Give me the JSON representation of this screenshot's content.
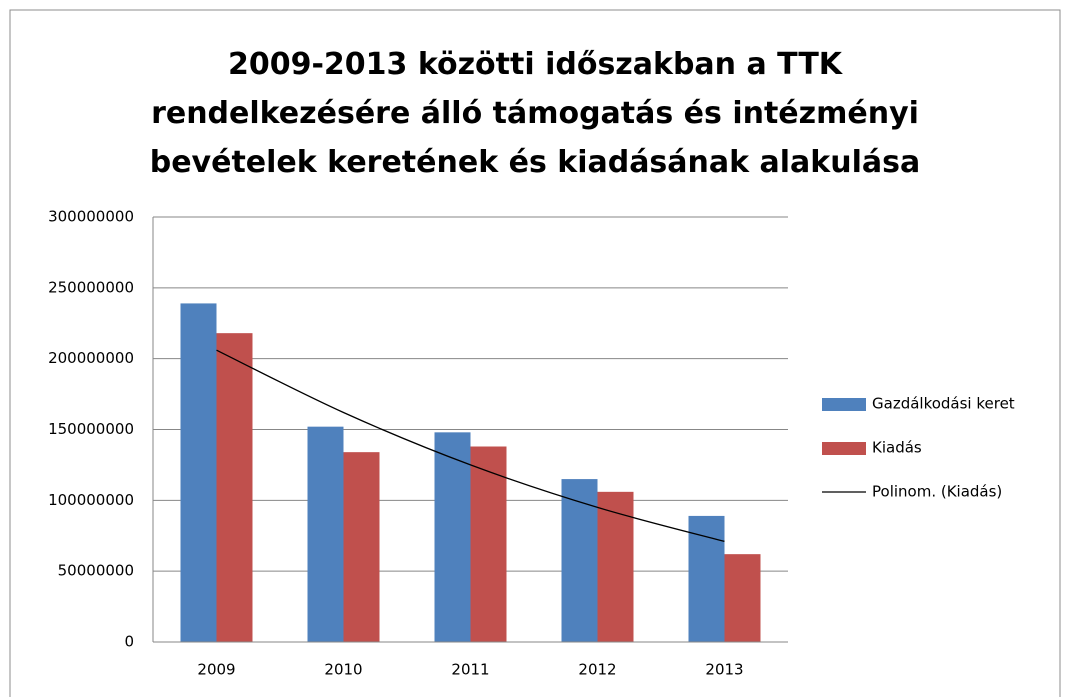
{
  "chart_data": {
    "type": "bar",
    "title": "2009-2013 közötti időszakban a TTK rendelkezésére álló támogatás és intézményi bevételek keretének és kiadásának alakulása",
    "categories": [
      "2009",
      "2010",
      "2011",
      "2012",
      "2013"
    ],
    "series": [
      {
        "name": "Gazdálkodási keret",
        "color": "#4f81bd",
        "values": [
          239000000,
          152000000,
          148000000,
          115000000,
          89000000
        ]
      },
      {
        "name": "Kiadás",
        "color": "#c0504d",
        "values": [
          218000000,
          134000000,
          138000000,
          106000000,
          62000000
        ]
      },
      {
        "name": "Polinom. (Kiadás)",
        "color": "#000000",
        "type": "line",
        "values": [
          206000000,
          162000000,
          125000000,
          95000000,
          71000000
        ]
      }
    ],
    "ylim": [
      0,
      300000000
    ],
    "yticks": [
      0,
      50000000,
      100000000,
      150000000,
      200000000,
      250000000,
      300000000
    ],
    "grid": true,
    "legend": "right"
  }
}
